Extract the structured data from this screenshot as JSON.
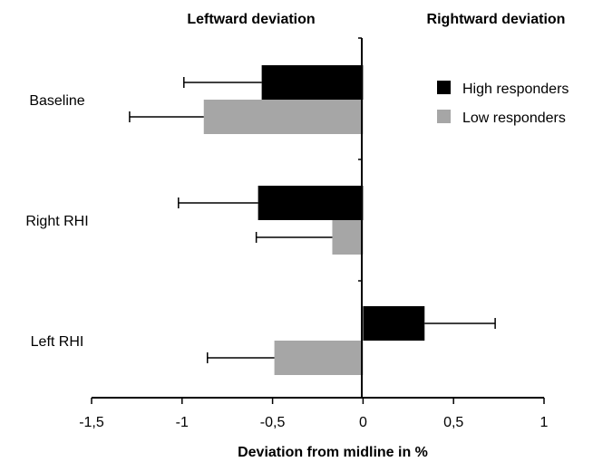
{
  "chart_data": {
    "type": "bar",
    "orientation": "horizontal",
    "headers": {
      "left": "Leftward deviation",
      "right": "Rightward deviation"
    },
    "categories": [
      "Baseline",
      "Right RHI",
      "Left RHI"
    ],
    "series": [
      {
        "name": "High responders",
        "color": "#000000",
        "values": [
          -0.56,
          -0.58,
          0.34
        ],
        "errors": [
          0.43,
          0.44,
          0.39
        ]
      },
      {
        "name": "Low responders",
        "color": "#a6a6a6",
        "values": [
          -0.88,
          -0.17,
          -0.49
        ],
        "errors": [
          0.41,
          0.42,
          0.37
        ]
      }
    ],
    "xlabel": "Deviation from midline in %",
    "xlim": [
      -1.5,
      1
    ],
    "xticks": [
      -1.5,
      -1,
      -0.5,
      0,
      0.5,
      1
    ],
    "xtick_labels": [
      "-1,5",
      "-1",
      "-0,5",
      "0",
      "0,5",
      "1"
    ],
    "legend_position": "top-right",
    "grid": false
  }
}
